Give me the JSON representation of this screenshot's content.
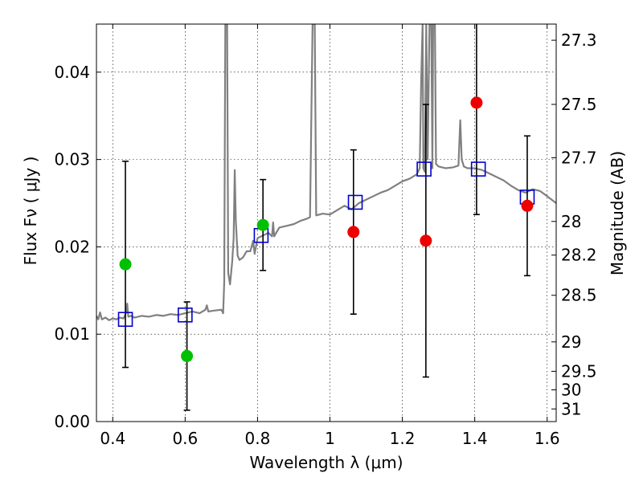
{
  "chart_data": {
    "type": "scatter",
    "xlabel": "Wavelength  λ (μm)",
    "ylabel": "Flux  Fν  ( μJy )",
    "ylabel_right": "Magnitude (AB)",
    "xlim": [
      0.355,
      1.625
    ],
    "ylim": [
      0.0,
      0.0455
    ],
    "grid": true,
    "x_ticks": [
      0.4,
      0.6,
      0.8,
      1.0,
      1.2,
      1.4,
      1.6
    ],
    "x_tick_labels": [
      "0.4",
      "0.6",
      "0.8",
      "1",
      "1.2",
      "1.4",
      "1.6"
    ],
    "y_ticks": [
      0.0,
      0.01,
      0.02,
      0.03,
      0.04
    ],
    "y_tick_labels": [
      "0.00",
      "0.01",
      "0.02",
      "0.03",
      "0.04"
    ],
    "right_ticks": [
      {
        "mag": 27.3,
        "label": "27.3"
      },
      {
        "mag": 27.5,
        "label": "27.5"
      },
      {
        "mag": 27.7,
        "label": "27.7"
      },
      {
        "mag": 28,
        "label": "28"
      },
      {
        "mag": 28.2,
        "label": "28.2"
      },
      {
        "mag": 28.5,
        "label": "28.5"
      },
      {
        "mag": 29,
        "label": "29"
      },
      {
        "mag": 29.5,
        "label": "29.5"
      },
      {
        "mag": 30,
        "label": "30"
      },
      {
        "mag": 31,
        "label": "31"
      }
    ],
    "colors": {
      "spectrum": "#808080",
      "model": "#0000cc",
      "green": "#00c000",
      "red": "#ee0000",
      "errorbar": "#000000"
    },
    "series": [
      {
        "kind": "spectrum",
        "points": [
          [
            0.355,
            0.0121
          ],
          [
            0.36,
            0.0117
          ],
          [
            0.365,
            0.0125
          ],
          [
            0.37,
            0.0117
          ],
          [
            0.38,
            0.0119
          ],
          [
            0.39,
            0.0116
          ],
          [
            0.4,
            0.0118
          ],
          [
            0.41,
            0.0117
          ],
          [
            0.42,
            0.0119
          ],
          [
            0.43,
            0.0118
          ],
          [
            0.437,
            0.0125
          ],
          [
            0.44,
            0.0135
          ],
          [
            0.443,
            0.012
          ],
          [
            0.45,
            0.0121
          ],
          [
            0.46,
            0.0119
          ],
          [
            0.48,
            0.0121
          ],
          [
            0.5,
            0.012
          ],
          [
            0.52,
            0.0122
          ],
          [
            0.54,
            0.0121
          ],
          [
            0.56,
            0.0123
          ],
          [
            0.58,
            0.0122
          ],
          [
            0.6,
            0.0124
          ],
          [
            0.62,
            0.0126
          ],
          [
            0.64,
            0.0124
          ],
          [
            0.656,
            0.0128
          ],
          [
            0.66,
            0.0133
          ],
          [
            0.664,
            0.0126
          ],
          [
            0.68,
            0.0127
          ],
          [
            0.7,
            0.0128
          ],
          [
            0.705,
            0.0124
          ],
          [
            0.708,
            0.016
          ],
          [
            0.711,
            0.0455
          ],
          [
            0.716,
            0.0455
          ],
          [
            0.719,
            0.017
          ],
          [
            0.724,
            0.0157
          ],
          [
            0.73,
            0.0183
          ],
          [
            0.734,
            0.021
          ],
          [
            0.737,
            0.0288
          ],
          [
            0.74,
            0.023
          ],
          [
            0.745,
            0.019
          ],
          [
            0.75,
            0.0185
          ],
          [
            0.76,
            0.0188
          ],
          [
            0.77,
            0.0195
          ],
          [
            0.78,
            0.0195
          ],
          [
            0.788,
            0.0207
          ],
          [
            0.792,
            0.0192
          ],
          [
            0.8,
            0.021
          ],
          [
            0.82,
            0.0214
          ],
          [
            0.83,
            0.0216
          ],
          [
            0.84,
            0.0212
          ],
          [
            0.843,
            0.0228
          ],
          [
            0.846,
            0.0212
          ],
          [
            0.86,
            0.0222
          ],
          [
            0.88,
            0.0224
          ],
          [
            0.9,
            0.0226
          ],
          [
            0.92,
            0.023
          ],
          [
            0.935,
            0.0232
          ],
          [
            0.945,
            0.0234
          ],
          [
            0.952,
            0.0455
          ],
          [
            0.958,
            0.0455
          ],
          [
            0.962,
            0.0236
          ],
          [
            0.98,
            0.0238
          ],
          [
            1.0,
            0.0237
          ],
          [
            1.02,
            0.0242
          ],
          [
            1.04,
            0.0247
          ],
          [
            1.06,
            0.0243
          ],
          [
            1.08,
            0.025
          ],
          [
            1.1,
            0.0254
          ],
          [
            1.12,
            0.0258
          ],
          [
            1.14,
            0.0262
          ],
          [
            1.16,
            0.0265
          ],
          [
            1.18,
            0.027
          ],
          [
            1.2,
            0.0275
          ],
          [
            1.22,
            0.0278
          ],
          [
            1.24,
            0.0283
          ],
          [
            1.248,
            0.029
          ],
          [
            1.252,
            0.039
          ],
          [
            1.256,
            0.0455
          ],
          [
            1.258,
            0.029
          ],
          [
            1.262,
            0.0286
          ],
          [
            1.266,
            0.0455
          ],
          [
            1.27,
            0.03
          ],
          [
            1.275,
            0.0455
          ],
          [
            1.28,
            0.0455
          ],
          [
            1.283,
            0.029
          ],
          [
            1.285,
            0.0455
          ],
          [
            1.29,
            0.0455
          ],
          [
            1.293,
            0.0295
          ],
          [
            1.3,
            0.0292
          ],
          [
            1.32,
            0.029
          ],
          [
            1.34,
            0.0291
          ],
          [
            1.355,
            0.0293
          ],
          [
            1.36,
            0.0345
          ],
          [
            1.364,
            0.03
          ],
          [
            1.37,
            0.0292
          ],
          [
            1.38,
            0.029
          ],
          [
            1.4,
            0.029
          ],
          [
            1.42,
            0.0288
          ],
          [
            1.44,
            0.0284
          ],
          [
            1.46,
            0.028
          ],
          [
            1.48,
            0.0276
          ],
          [
            1.5,
            0.027
          ],
          [
            1.52,
            0.0265
          ],
          [
            1.54,
            0.0262
          ],
          [
            1.56,
            0.0266
          ],
          [
            1.58,
            0.0264
          ],
          [
            1.6,
            0.0258
          ],
          [
            1.625,
            0.025
          ]
        ]
      },
      {
        "kind": "model_squares",
        "points": [
          [
            0.435,
            0.0117
          ],
          [
            0.6,
            0.0122
          ],
          [
            0.81,
            0.0213
          ],
          [
            1.07,
            0.0251
          ],
          [
            1.26,
            0.0289
          ],
          [
            1.41,
            0.0289
          ],
          [
            1.545,
            0.0257
          ]
        ]
      },
      {
        "kind": "observed_green",
        "points": [
          {
            "x": 0.435,
            "y": 0.018,
            "err": 0.0118
          },
          {
            "x": 0.605,
            "y": 0.0075,
            "err": 0.0062
          },
          {
            "x": 0.815,
            "y": 0.0225,
            "err": 0.0052
          }
        ]
      },
      {
        "kind": "observed_red",
        "points": [
          {
            "x": 1.065,
            "y": 0.0217,
            "err": 0.0094
          },
          {
            "x": 1.265,
            "y": 0.0207,
            "err": 0.0156
          },
          {
            "x": 1.405,
            "y": 0.0365,
            "err": 0.0128
          },
          {
            "x": 1.545,
            "y": 0.0247,
            "err": 0.008
          }
        ]
      }
    ]
  }
}
